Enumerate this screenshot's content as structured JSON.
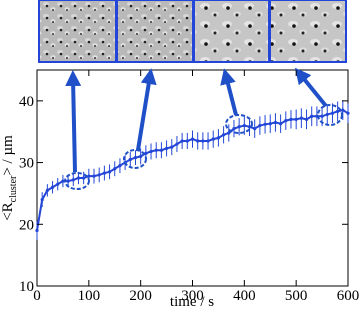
{
  "chart_data": {
    "type": "errorbar-line",
    "xlabel": "time / s",
    "ylabel": [
      "<R",
      "cluster",
      "> / µm"
    ],
    "x": [
      0,
      10,
      20,
      30,
      40,
      50,
      60,
      70,
      80,
      90,
      100,
      110,
      120,
      130,
      140,
      150,
      160,
      170,
      180,
      190,
      200,
      210,
      220,
      230,
      240,
      250,
      260,
      270,
      280,
      290,
      300,
      310,
      320,
      330,
      340,
      350,
      360,
      370,
      380,
      390,
      400,
      410,
      420,
      430,
      440,
      450,
      460,
      470,
      480,
      490,
      500,
      510,
      520,
      530,
      540,
      550,
      560,
      570,
      580,
      590,
      600
    ],
    "values": [
      19,
      24,
      25.5,
      26,
      26.5,
      27,
      27,
      27.2,
      27.5,
      27.5,
      27.8,
      27.8,
      28,
      28.3,
      28.5,
      29,
      29.5,
      30,
      30.5,
      30.8,
      31,
      31.5,
      31.8,
      32,
      32,
      32.3,
      32.5,
      33,
      33.5,
      33.5,
      33.8,
      33.5,
      33.5,
      33.5,
      33.8,
      34,
      34.5,
      34.8,
      35.5,
      35.8,
      36,
      35.8,
      35.5,
      36,
      36.2,
      36.3,
      36.5,
      36.3,
      36.8,
      37,
      37,
      37.2,
      37,
      37.5,
      37.5,
      37.5,
      37.8,
      38,
      38.3,
      38.5,
      38
    ],
    "errors": [
      1.5,
      1.2,
      1,
      1,
      1,
      1,
      1,
      1,
      1,
      1,
      1.2,
      1.2,
      1.2,
      1.2,
      1.2,
      1.2,
      1.2,
      1.2,
      1.2,
      1.2,
      1.3,
      1.3,
      1.3,
      1.3,
      1.3,
      1.3,
      1.3,
      1.3,
      1.3,
      1.3,
      1.4,
      1.4,
      1.4,
      1.4,
      1.4,
      1.4,
      1.4,
      1.4,
      1.4,
      1.4,
      1.5,
      1.5,
      1.5,
      1.5,
      1.5,
      1.5,
      1.5,
      1.5,
      1.5,
      1.5,
      1.6,
      1.6,
      1.6,
      1.6,
      1.6,
      1.6,
      1.6,
      1.6,
      1.6,
      1.6,
      1.6
    ],
    "color": "#2346d8",
    "xlim": [
      0,
      600
    ],
    "xticks": [
      0,
      100,
      200,
      300,
      400,
      500,
      600
    ],
    "ylim": [
      10,
      45
    ],
    "yticks": [
      10,
      20,
      30,
      40
    ]
  }
}
